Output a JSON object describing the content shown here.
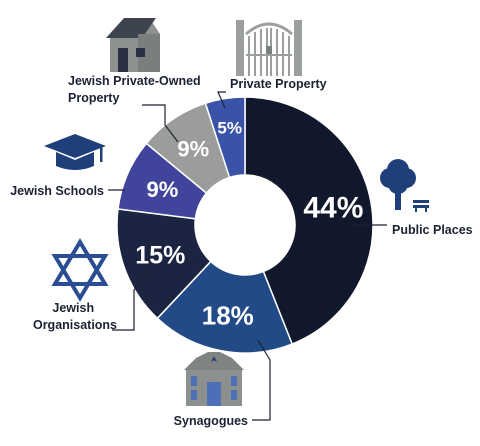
{
  "chart_data": {
    "type": "pie",
    "donut": true,
    "unit": "%",
    "categories": [
      "Public Places",
      "Synagogues",
      "Jewish Organisations",
      "Jewish Schools",
      "Jewish Private-Owned Property",
      "Private Property"
    ],
    "values": [
      44,
      18,
      15,
      9,
      9,
      5
    ],
    "value_labels": [
      "44%",
      "18%",
      "15%",
      "9%",
      "9%",
      "5%"
    ],
    "label_lines": [
      [
        "Public Places"
      ],
      [
        "Synagogues"
      ],
      [
        "Jewish",
        "Organisations"
      ],
      [
        "Jewish Schools"
      ],
      [
        "Jewish Private-Owned",
        "Property"
      ],
      [
        "Private Property"
      ]
    ],
    "colors": [
      "#12182b",
      "#214a86",
      "#1b2440",
      "#40449a",
      "#9a9d9a",
      "#3a53a8"
    ],
    "icons": [
      "tree-bench-icon",
      "synagogue-icon",
      "star-of-david-icon",
      "graduation-cap-icon",
      "house-icon",
      "gate-icon"
    ],
    "legend": "none",
    "grid": false,
    "start_angle_deg": 0,
    "direction": "clockwise"
  }
}
